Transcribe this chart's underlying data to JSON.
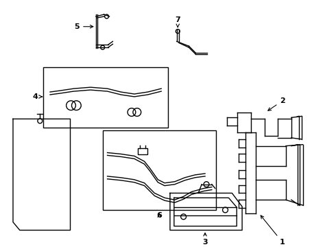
{
  "background_color": "#ffffff",
  "line_color": "#000000",
  "lw": 1.0
}
